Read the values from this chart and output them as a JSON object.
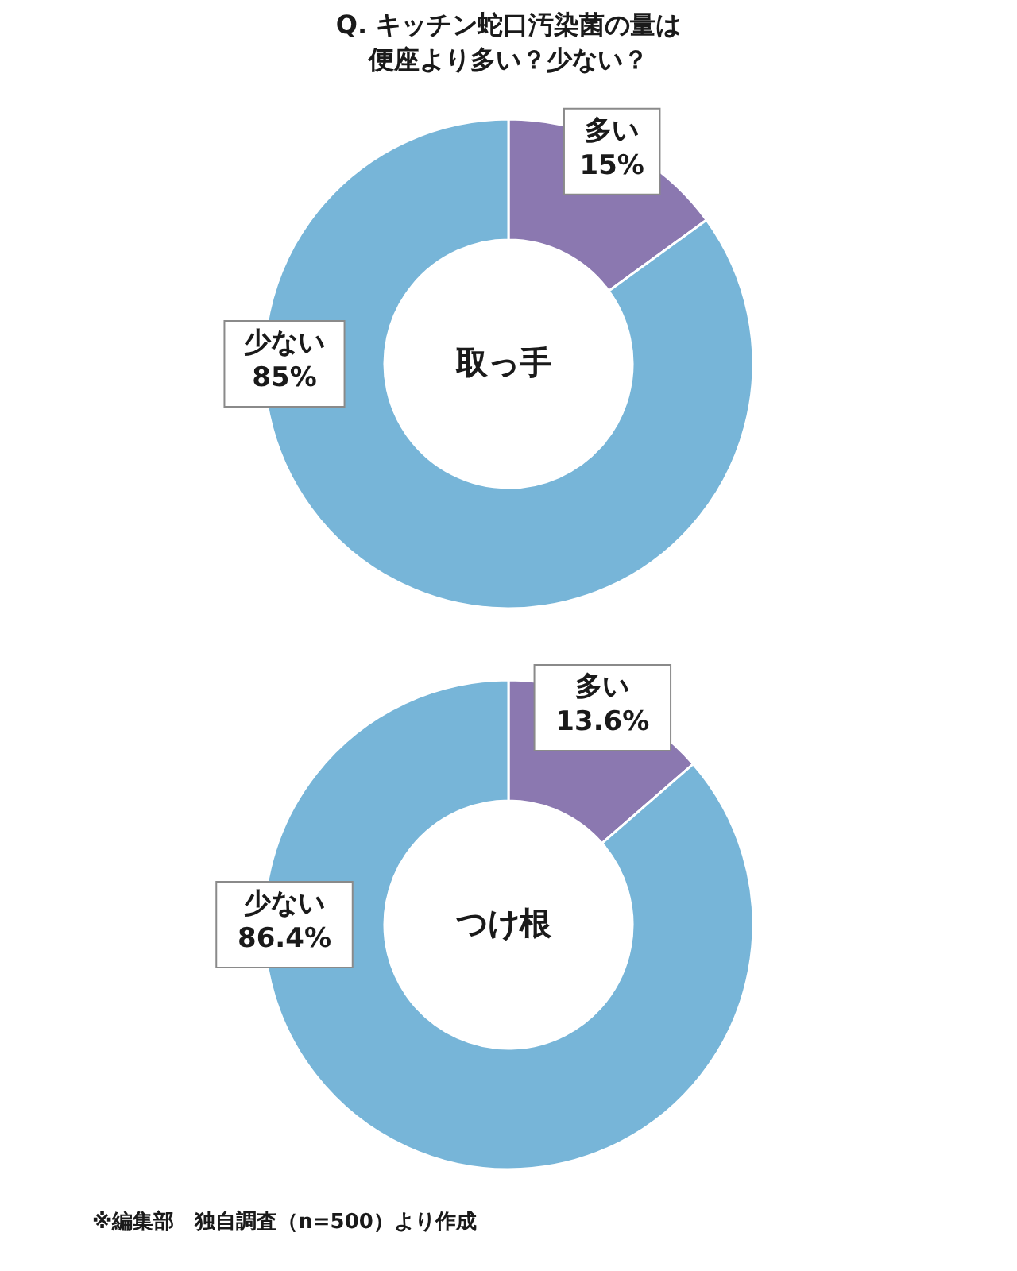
{
  "chart_data": [
    {
      "type": "donut",
      "title": "Q. キッチン蛇口汚染菌の量は便座より多い？少ない？",
      "subtitle": "取っ手",
      "categories": [
        "多い",
        "少ない"
      ],
      "values": [
        15,
        85
      ],
      "colors": [
        "#8b78b0",
        "#77b5d8"
      ],
      "value_labels": [
        "15%",
        "85%"
      ]
    },
    {
      "type": "donut",
      "subtitle": "つけ根",
      "categories": [
        "多い",
        "少ない"
      ],
      "values": [
        13.6,
        86.4
      ],
      "colors": [
        "#8b78b0",
        "#77b5d8"
      ],
      "value_labels": [
        "13.6%",
        "86.4%"
      ],
      "annotations": [
        "※編集部　独自調査（n=500）より作成"
      ]
    }
  ]
}
